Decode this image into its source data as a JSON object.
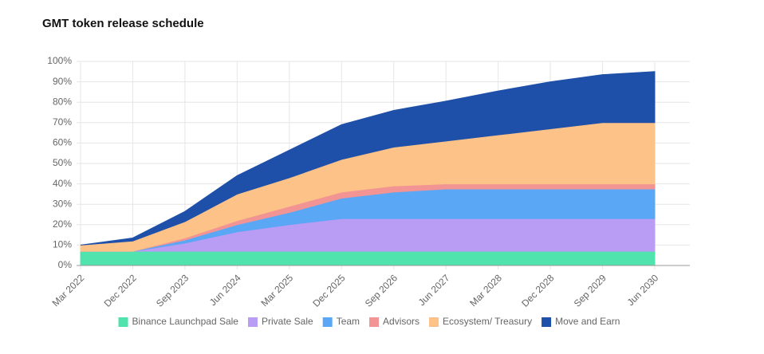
{
  "chart_data": {
    "type": "stacked-area",
    "title": "GMT token release schedule",
    "categories": [
      "Mar 2022",
      "Dec 2022",
      "Sep 2023",
      "Jun 2024",
      "Mar 2025",
      "Dec 2025",
      "Sep 2026",
      "Jun 2027",
      "Mar 2028",
      "Dec 2028",
      "Sep 2029",
      "Jun 2030"
    ],
    "series": [
      {
        "name": "Binance Launchpad Sale",
        "color": "#50e3ae",
        "values": [
          7,
          7,
          7,
          7,
          7,
          7,
          7,
          7,
          7,
          7,
          7,
          7
        ]
      },
      {
        "name": "Private Sale",
        "color": "#b99cf4",
        "values": [
          0,
          0,
          4,
          9.5,
          13,
          16,
          16,
          16,
          16,
          16,
          16,
          16
        ]
      },
      {
        "name": "Team",
        "color": "#5aa7f6",
        "values": [
          0,
          0,
          1.5,
          3.5,
          6,
          10,
          13,
          14.5,
          14.5,
          14.5,
          14.5,
          14.5
        ]
      },
      {
        "name": "Advisors",
        "color": "#f29494",
        "values": [
          0,
          0,
          1,
          2,
          3,
          3,
          3,
          2.5,
          2.5,
          2.5,
          2.5,
          2.5
        ]
      },
      {
        "name": "Ecosystem/ Treasury",
        "color": "#fcc287",
        "values": [
          3,
          5,
          8,
          13,
          14,
          16,
          19,
          21,
          24,
          27,
          30,
          30
        ]
      },
      {
        "name": "Move and Earn",
        "color": "#1f50a9",
        "values": [
          0,
          1.5,
          5,
          9,
          13.5,
          17,
          18,
          19.5,
          21.5,
          23,
          23.5,
          25
        ]
      }
    ],
    "ylim": [
      0,
      100
    ],
    "yticks": [
      {
        "value": 0,
        "label": "0%"
      },
      {
        "value": 10,
        "label": "10%"
      },
      {
        "value": 20,
        "label": "20%"
      },
      {
        "value": 30,
        "label": "30%"
      },
      {
        "value": 40,
        "label": "40%"
      },
      {
        "value": 50,
        "label": "50%"
      },
      {
        "value": 60,
        "label": "60%"
      },
      {
        "value": 70,
        "label": "70%"
      },
      {
        "value": 80,
        "label": "80%"
      },
      {
        "value": 90,
        "label": "90%"
      },
      {
        "value": 100,
        "label": "100%"
      }
    ],
    "grid": true
  }
}
